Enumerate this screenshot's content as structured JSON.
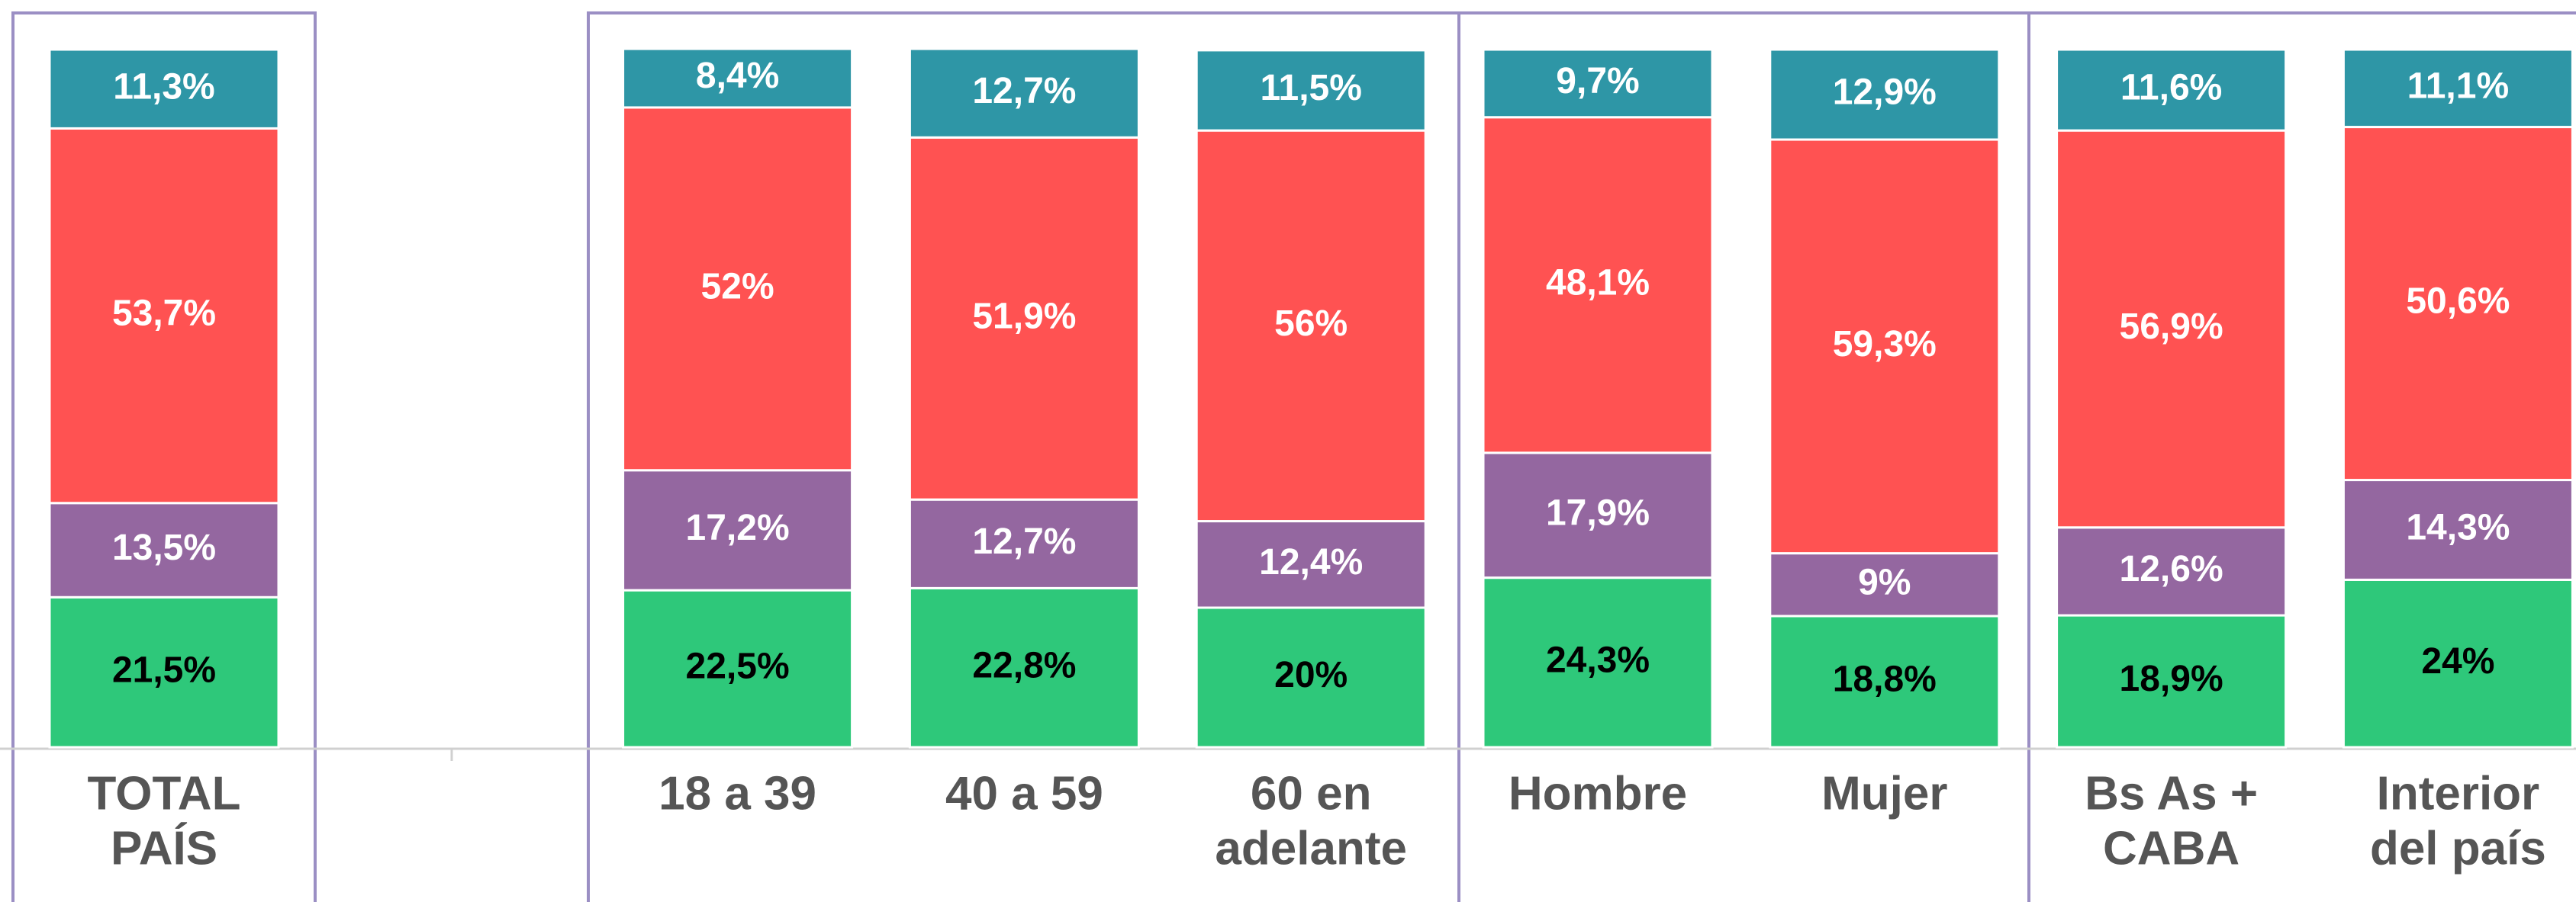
{
  "chart_data": {
    "type": "stacked_bar",
    "categories": [
      [
        "TOTAL",
        "PAÍS"
      ],
      null,
      [
        "18 a 39"
      ],
      [
        "40 a 59"
      ],
      [
        "60 en",
        "adelante"
      ],
      [
        "Hombre"
      ],
      [
        "Mujer"
      ],
      [
        "Bs As +",
        "CABA"
      ],
      [
        "Interior",
        "del país"
      ]
    ],
    "ylim": [
      0,
      100
    ],
    "series": [
      {
        "color": "#2ec87a",
        "values": [
          21.5,
          null,
          22.5,
          22.8,
          20,
          24.3,
          18.8,
          18.9,
          24
        ],
        "value_labels": [
          "21,5%",
          null,
          "22,5%",
          "22,8%",
          "20%",
          "24,3%",
          "18,8%",
          "18,9%",
          "24%"
        ]
      },
      {
        "color": "#9467a0",
        "values": [
          13.5,
          null,
          17.2,
          12.7,
          12.4,
          17.9,
          9,
          12.6,
          14.3
        ],
        "value_labels": [
          "13,5%",
          null,
          "17,2%",
          "12,7%",
          "12,4%",
          "17,9%",
          "9%",
          "12,6%",
          "14,3%"
        ]
      },
      {
        "color": "#ff5252",
        "values": [
          53.7,
          null,
          52,
          51.9,
          56,
          48.1,
          59.3,
          56.9,
          50.6
        ],
        "value_labels": [
          "53,7%",
          null,
          "52%",
          "51,9%",
          "56%",
          "48,1%",
          "59,3%",
          "56,9%",
          "50,6%"
        ]
      },
      {
        "color": "#2e96a6",
        "values": [
          11.3,
          null,
          8.4,
          12.7,
          11.5,
          9.7,
          12.9,
          11.6,
          11.1
        ],
        "value_labels": [
          "11,3%",
          null,
          "8,4%",
          "12,7%",
          "11,5%",
          "9,7%",
          "12,9%",
          "11,6%",
          "11,1%"
        ]
      }
    ]
  }
}
